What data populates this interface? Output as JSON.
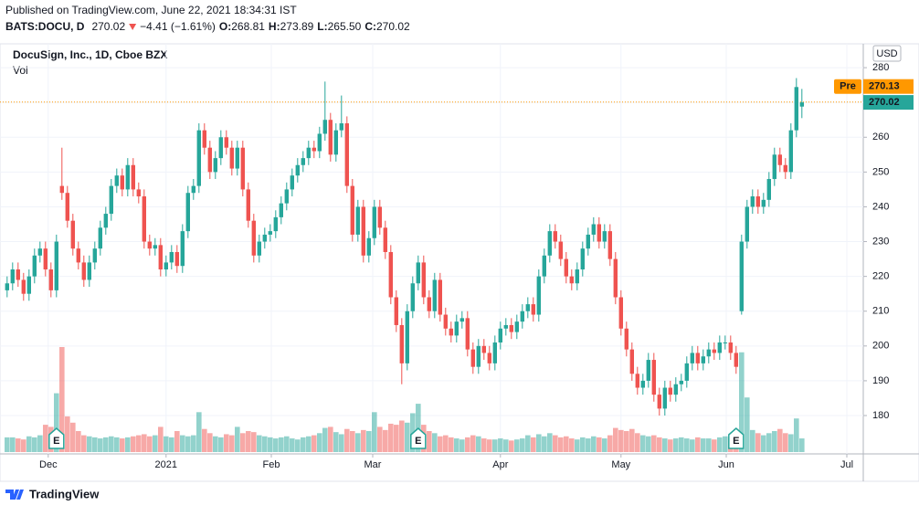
{
  "header": {
    "published": "Published on TradingView.com, June 22, 2021 18:34:31 IST",
    "symbol": "BATS:DOCU, D",
    "price": "270.02",
    "change": "−4.41 (−1.61%)",
    "ohlc": [
      {
        "label": "O:",
        "value": "268.81"
      },
      {
        "label": "H:",
        "value": "273.89"
      },
      {
        "label": "L:",
        "value": "265.50"
      },
      {
        "label": "C:",
        "value": "270.02"
      }
    ]
  },
  "chart_data": {
    "type": "candlestick",
    "title": "DocuSign, Inc., 1D, Cboe BZX",
    "volume_label": "Vol",
    "currency": "USD",
    "up_color": "#26a69a",
    "down_color": "#ef5350",
    "grid": true,
    "ylim": [
      169.5,
      283.7
    ],
    "yticks": [
      180,
      190,
      200,
      210,
      220,
      230,
      240,
      250,
      260,
      270,
      280
    ],
    "xlim": [
      -1.3,
      156.2
    ],
    "xticks": [
      {
        "value": 7.5,
        "label": "Dec"
      },
      {
        "value": 29,
        "label": "2021"
      },
      {
        "value": 48.2,
        "label": "Feb"
      },
      {
        "value": 66.7,
        "label": "Mar"
      },
      {
        "value": 90,
        "label": "Apr"
      },
      {
        "value": 112,
        "label": "May"
      },
      {
        "value": 131.2,
        "label": "Jun"
      },
      {
        "value": 153.2,
        "label": "Jul"
      }
    ],
    "pre_market": {
      "label": "Pre",
      "value": 270.13,
      "color": "#ff9800"
    },
    "last_price": 270.02,
    "events": [
      {
        "index": 9,
        "label": "E"
      },
      {
        "index": 75,
        "label": "E"
      },
      {
        "index": 133,
        "label": "E"
      }
    ],
    "open": [
      216,
      218,
      222,
      219,
      215,
      220,
      226,
      228,
      222,
      216,
      246,
      244,
      236,
      228,
      224,
      219,
      224,
      228,
      234,
      238,
      246,
      249,
      245,
      252,
      245,
      243,
      230,
      228,
      229,
      222,
      224,
      227,
      223,
      233,
      244,
      246,
      262,
      257,
      250,
      254,
      260,
      257,
      251,
      257,
      245,
      236,
      226,
      230,
      232,
      233,
      237,
      241,
      245,
      249,
      252,
      254,
      257,
      256,
      261,
      265,
      255,
      262,
      264,
      246,
      232,
      240,
      226,
      231,
      240,
      234,
      227,
      214,
      206,
      195,
      210,
      218,
      224,
      214,
      210,
      219,
      209,
      205,
      203,
      207,
      208,
      199,
      194,
      200,
      198,
      195,
      201,
      205,
      206,
      204,
      207,
      210,
      212,
      209,
      220,
      226,
      233,
      230,
      225,
      220,
      218,
      222,
      228,
      232,
      235,
      230,
      233,
      225,
      214,
      205,
      199,
      192,
      188,
      190,
      196,
      186,
      182,
      188,
      186,
      189,
      190,
      195,
      198,
      195,
      197,
      199,
      198,
      201,
      201,
      198,
      210,
      230,
      240,
      243,
      240,
      242,
      248,
      255,
      252,
      250,
      262,
      268.81
    ],
    "high": [
      220,
      224,
      224,
      221,
      222,
      228,
      230,
      230,
      224,
      232,
      257,
      246,
      238,
      230,
      226,
      226,
      230,
      236,
      240,
      248,
      251,
      251,
      254,
      254,
      247,
      245,
      232,
      231,
      231,
      226,
      229,
      229,
      235,
      246,
      248,
      264,
      264,
      259,
      256,
      262,
      262,
      259,
      259,
      259,
      247,
      238,
      232,
      234,
      235,
      239,
      243,
      247,
      251,
      254,
      256,
      259,
      259,
      263,
      276,
      267,
      264,
      272,
      266,
      248,
      242,
      242,
      233,
      242,
      242,
      236,
      229,
      216,
      208,
      212,
      220,
      226,
      226,
      216,
      221,
      221,
      211,
      207,
      209,
      210,
      210,
      201,
      202,
      202,
      200,
      203,
      207,
      208,
      208,
      209,
      212,
      214,
      214,
      222,
      228,
      235,
      235,
      232,
      227,
      222,
      224,
      230,
      234,
      237,
      237,
      235,
      235,
      227,
      216,
      207,
      201,
      194,
      192,
      198,
      198,
      188,
      190,
      190,
      191,
      192,
      197,
      200,
      200,
      199,
      201,
      201,
      203,
      203,
      203,
      200,
      232,
      242,
      245,
      245,
      244,
      250,
      257,
      257,
      254,
      264,
      277,
      273.89
    ],
    "low": [
      214,
      216,
      217,
      213,
      213,
      218,
      224,
      220,
      214,
      214,
      242,
      234,
      226,
      222,
      217,
      217,
      222,
      226,
      232,
      236,
      244,
      243,
      243,
      243,
      241,
      228,
      226,
      226,
      220,
      220,
      222,
      221,
      221,
      231,
      242,
      244,
      255,
      248,
      248,
      252,
      255,
      249,
      249,
      243,
      234,
      224,
      224,
      228,
      230,
      231,
      235,
      239,
      243,
      247,
      250,
      252,
      254,
      254,
      259,
      253,
      253,
      260,
      244,
      230,
      230,
      224,
      224,
      229,
      232,
      225,
      212,
      204,
      189,
      193,
      208,
      216,
      212,
      208,
      208,
      207,
      203,
      201,
      201,
      205,
      197,
      192,
      192,
      196,
      193,
      193,
      199,
      203,
      202,
      202,
      205,
      208,
      207,
      207,
      218,
      224,
      228,
      223,
      218,
      216,
      216,
      220,
      226,
      230,
      228,
      228,
      223,
      212,
      203,
      197,
      190,
      186,
      186,
      188,
      184,
      180,
      180,
      184,
      184,
      187,
      188,
      193,
      193,
      193,
      195,
      196,
      196,
      199,
      196,
      192,
      209,
      228,
      238,
      238,
      238,
      240,
      246,
      250,
      248,
      248,
      260,
      265.5
    ],
    "close": [
      218,
      222,
      219,
      215,
      220,
      226,
      228,
      222,
      216,
      230,
      244,
      236,
      228,
      224,
      219,
      224,
      228,
      234,
      238,
      246,
      249,
      245,
      252,
      245,
      243,
      230,
      228,
      229,
      222,
      224,
      227,
      223,
      233,
      244,
      246,
      262,
      257,
      250,
      254,
      260,
      257,
      251,
      257,
      245,
      236,
      226,
      230,
      232,
      233,
      237,
      241,
      245,
      249,
      252,
      254,
      257,
      256,
      261,
      265,
      255,
      262,
      264,
      246,
      232,
      240,
      226,
      231,
      240,
      234,
      227,
      214,
      206,
      195,
      210,
      218,
      224,
      214,
      210,
      219,
      209,
      205,
      203,
      207,
      208,
      199,
      194,
      200,
      198,
      195,
      201,
      205,
      206,
      204,
      207,
      210,
      212,
      209,
      220,
      226,
      233,
      230,
      225,
      220,
      218,
      222,
      228,
      232,
      235,
      230,
      233,
      225,
      214,
      205,
      199,
      192,
      188,
      190,
      196,
      186,
      182,
      188,
      186,
      189,
      190,
      195,
      198,
      195,
      197,
      199,
      198,
      201,
      201,
      198,
      194,
      230,
      240,
      243,
      240,
      242,
      248,
      255,
      252,
      250,
      262,
      274.43,
      270.02
    ],
    "volume": [
      1.4,
      1.4,
      1.3,
      1.2,
      1.5,
      1.4,
      1.6,
      2.6,
      2.4,
      5.6,
      10,
      3.4,
      2.8,
      2.0,
      1.6,
      1.5,
      1.4,
      1.3,
      1.4,
      1.5,
      1.4,
      1.3,
      1.4,
      1.5,
      1.6,
      1.7,
      1.5,
      1.6,
      2.4,
      1.5,
      1.4,
      2.0,
      1.6,
      1.5,
      1.6,
      3.8,
      2.2,
      1.8,
      1.5,
      1.4,
      1.7,
      1.6,
      2.4,
      1.8,
      2.0,
      1.9,
      1.6,
      1.5,
      1.4,
      1.3,
      1.4,
      1.5,
      1.3,
      1.2,
      1.4,
      1.5,
      1.6,
      1.8,
      2.3,
      2.4,
      1.9,
      1.7,
      2.2,
      2.0,
      1.8,
      2.1,
      2.0,
      3.8,
      2.4,
      2.1,
      2.7,
      2.6,
      3.0,
      2.8,
      3.7,
      4.6,
      2.6,
      2.0,
      1.8,
      1.5,
      1.6,
      1.4,
      1.3,
      1.2,
      1.4,
      1.6,
      1.5,
      1.3,
      1.2,
      1.2,
      1.3,
      1.2,
      1.1,
      1.2,
      1.3,
      1.6,
      1.4,
      1.7,
      1.5,
      1.8,
      1.6,
      1.4,
      1.5,
      1.3,
      1.2,
      1.4,
      1.3,
      1.5,
      1.4,
      1.3,
      1.6,
      2.3,
      2.1,
      2.0,
      2.2,
      1.8,
      1.6,
      1.5,
      1.6,
      1.4,
      1.3,
      1.2,
      1.3,
      1.4,
      1.3,
      1.2,
      1.4,
      1.3,
      1.3,
      1.2,
      1.4,
      1.5,
      1.4,
      2.2,
      9.5,
      5.2,
      2.1,
      1.8,
      1.6,
      1.8,
      2.0,
      2.2,
      1.8,
      1.7,
      3.2,
      1.3
    ]
  },
  "footer": {
    "brand": "TradingView"
  }
}
